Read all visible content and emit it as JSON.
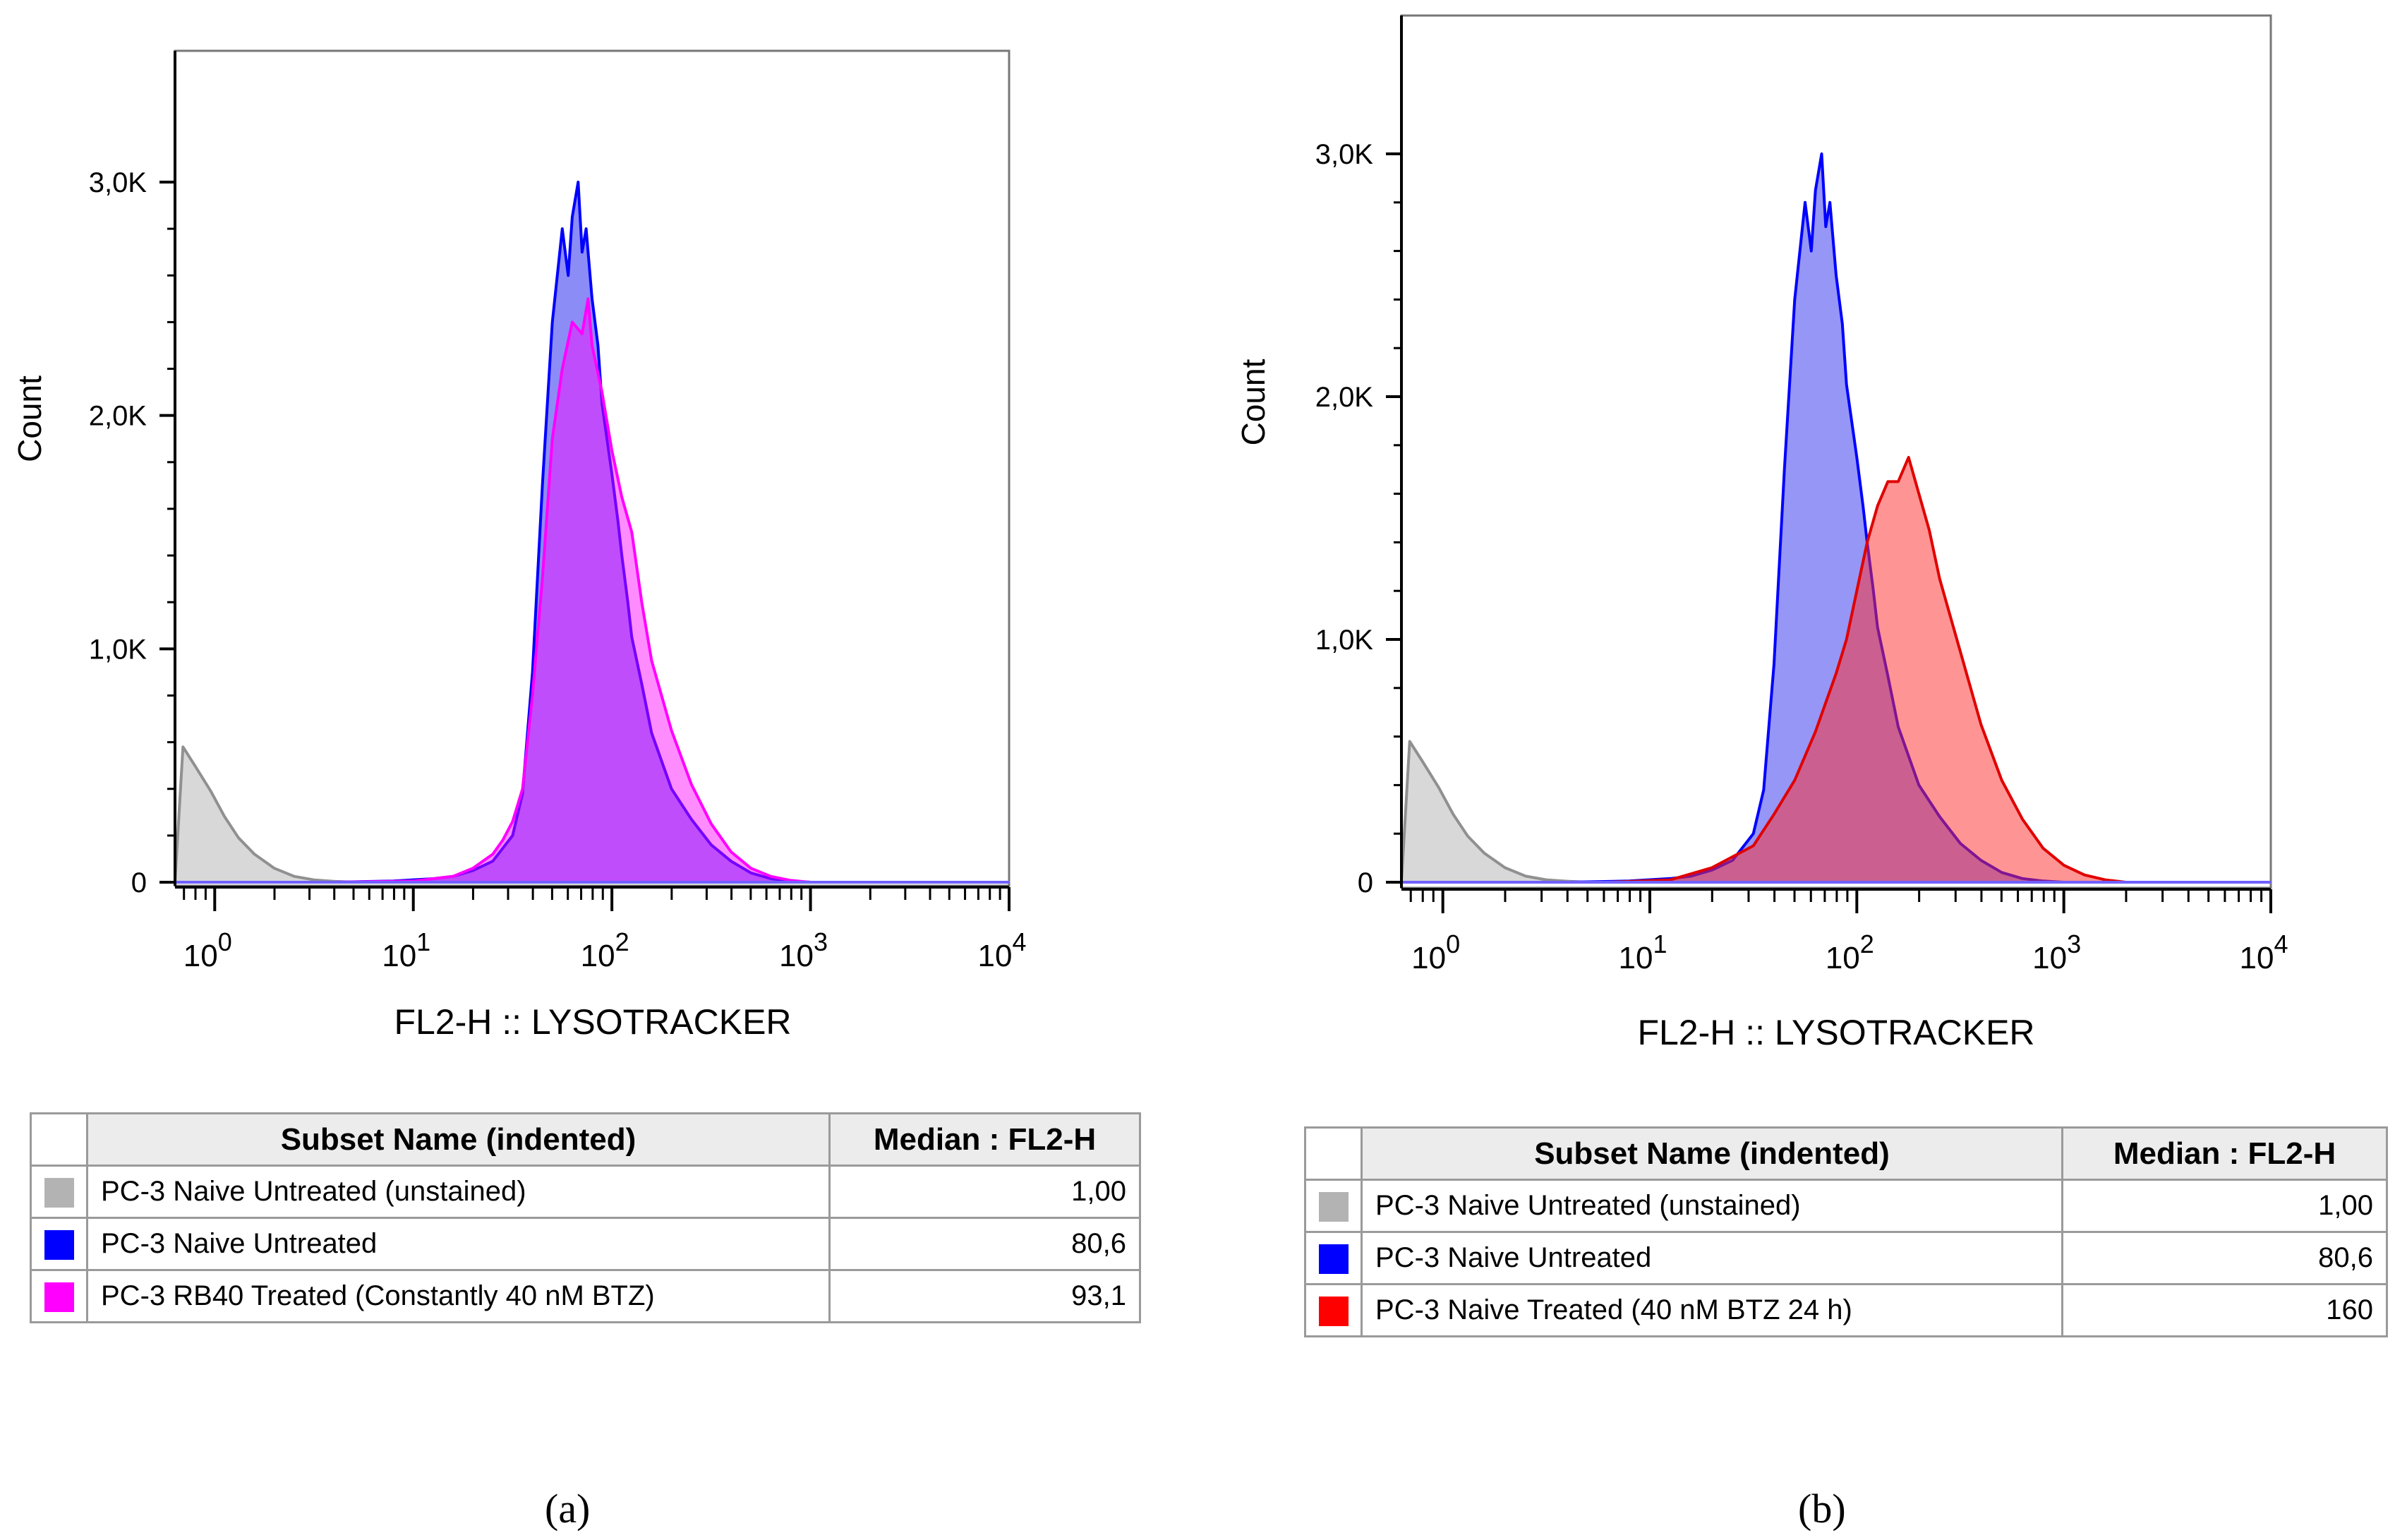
{
  "chart_data": [
    {
      "type": "histogram",
      "panel_label": "a",
      "ylabel": "Count",
      "xlabel": "FL2-H :: LYSOTRACKER",
      "x_scale": "log",
      "xlim_log10": [
        -0.2,
        4.0
      ],
      "ylim": [
        0,
        3600
      ],
      "y_ticks": [
        0,
        1000,
        2000,
        3000
      ],
      "y_tick_labels": [
        "0",
        "1,0K",
        "2,0K",
        "3,0K"
      ],
      "x_tick_base": "10",
      "x_tick_exponents": [
        "0",
        "1",
        "2",
        "3",
        "4"
      ],
      "series": [
        {
          "name": "PC-3 Naive Untreated (unstained)",
          "color": "#b8b8b8",
          "stroke": "#909090",
          "fill_opacity": 0.55,
          "median": "1,00",
          "points": [
            [
              -0.2,
              0
            ],
            [
              -0.16,
              580
            ],
            [
              -0.1,
              500
            ],
            [
              -0.02,
              390
            ],
            [
              0.05,
              280
            ],
            [
              0.12,
              190
            ],
            [
              0.2,
              120
            ],
            [
              0.3,
              60
            ],
            [
              0.4,
              25
            ],
            [
              0.5,
              10
            ],
            [
              0.6,
              4
            ],
            [
              0.7,
              0
            ]
          ]
        },
        {
          "name": "PC-3 Naive Untreated",
          "color": "#2d2df0",
          "stroke": "#0000ff",
          "fill_opacity": 0.55,
          "median": "80,6",
          "points": [
            [
              0.6,
              0
            ],
            [
              0.9,
              5
            ],
            [
              1.1,
              15
            ],
            [
              1.2,
              25
            ],
            [
              1.3,
              50
            ],
            [
              1.4,
              90
            ],
            [
              1.5,
              200
            ],
            [
              1.55,
              380
            ],
            [
              1.6,
              900
            ],
            [
              1.65,
              1700
            ],
            [
              1.7,
              2400
            ],
            [
              1.75,
              2800
            ],
            [
              1.78,
              2600
            ],
            [
              1.8,
              2850
            ],
            [
              1.83,
              3000
            ],
            [
              1.85,
              2700
            ],
            [
              1.87,
              2800
            ],
            [
              1.9,
              2500
            ],
            [
              1.93,
              2300
            ],
            [
              1.95,
              2050
            ],
            [
              2.0,
              1750
            ],
            [
              2.03,
              1550
            ],
            [
              2.05,
              1400
            ],
            [
              2.08,
              1200
            ],
            [
              2.1,
              1050
            ],
            [
              2.15,
              850
            ],
            [
              2.2,
              640
            ],
            [
              2.3,
              400
            ],
            [
              2.4,
              270
            ],
            [
              2.5,
              160
            ],
            [
              2.6,
              90
            ],
            [
              2.7,
              40
            ],
            [
              2.8,
              15
            ],
            [
              2.9,
              5
            ],
            [
              3.0,
              0
            ]
          ]
        },
        {
          "name": "PC-3 RB40 Treated (Constantly 40 nM BTZ)",
          "color": "#ff00ff",
          "stroke": "#ff00ff",
          "fill_opacity": 0.45,
          "median": "93,1",
          "points": [
            [
              0.6,
              0
            ],
            [
              1.0,
              5
            ],
            [
              1.2,
              25
            ],
            [
              1.3,
              60
            ],
            [
              1.4,
              120
            ],
            [
              1.45,
              180
            ],
            [
              1.5,
              260
            ],
            [
              1.55,
              400
            ],
            [
              1.6,
              800
            ],
            [
              1.65,
              1300
            ],
            [
              1.7,
              1900
            ],
            [
              1.75,
              2200
            ],
            [
              1.8,
              2400
            ],
            [
              1.85,
              2350
            ],
            [
              1.88,
              2500
            ],
            [
              1.9,
              2300
            ],
            [
              1.95,
              2100
            ],
            [
              2.0,
              1850
            ],
            [
              2.05,
              1650
            ],
            [
              2.1,
              1500
            ],
            [
              2.15,
              1200
            ],
            [
              2.2,
              950
            ],
            [
              2.3,
              650
            ],
            [
              2.4,
              420
            ],
            [
              2.5,
              250
            ],
            [
              2.6,
              130
            ],
            [
              2.7,
              60
            ],
            [
              2.8,
              25
            ],
            [
              2.9,
              8
            ],
            [
              3.0,
              0
            ]
          ]
        }
      ]
    },
    {
      "type": "histogram",
      "panel_label": "b",
      "ylabel": "Count",
      "xlabel": "FL2-H :: LYSOTRACKER",
      "x_scale": "log",
      "xlim_log10": [
        -0.2,
        4.0
      ],
      "ylim": [
        0,
        3600
      ],
      "y_ticks": [
        0,
        1000,
        2000,
        3000
      ],
      "y_tick_labels": [
        "0",
        "1,0K",
        "2,0K",
        "3,0K"
      ],
      "x_tick_base": "10",
      "x_tick_exponents": [
        "0",
        "1",
        "2",
        "3",
        "4"
      ],
      "series": [
        {
          "name": "PC-3 Naive Untreated (unstained)",
          "color": "#b8b8b8",
          "stroke": "#909090",
          "fill_opacity": 0.55,
          "median": "1,00",
          "points": [
            [
              -0.2,
              0
            ],
            [
              -0.16,
              580
            ],
            [
              -0.1,
              500
            ],
            [
              -0.02,
              390
            ],
            [
              0.05,
              280
            ],
            [
              0.12,
              190
            ],
            [
              0.2,
              120
            ],
            [
              0.3,
              60
            ],
            [
              0.4,
              25
            ],
            [
              0.5,
              10
            ],
            [
              0.6,
              4
            ],
            [
              0.7,
              0
            ]
          ]
        },
        {
          "name": "PC-3 Naive Untreated",
          "color": "#2d2df0",
          "stroke": "#0000ff",
          "fill_opacity": 0.5,
          "median": "80,6",
          "points": [
            [
              0.6,
              0
            ],
            [
              0.9,
              5
            ],
            [
              1.1,
              15
            ],
            [
              1.2,
              25
            ],
            [
              1.3,
              50
            ],
            [
              1.4,
              90
            ],
            [
              1.5,
              200
            ],
            [
              1.55,
              380
            ],
            [
              1.6,
              900
            ],
            [
              1.65,
              1700
            ],
            [
              1.7,
              2400
            ],
            [
              1.75,
              2800
            ],
            [
              1.78,
              2600
            ],
            [
              1.8,
              2850
            ],
            [
              1.83,
              3000
            ],
            [
              1.85,
              2700
            ],
            [
              1.87,
              2800
            ],
            [
              1.9,
              2500
            ],
            [
              1.93,
              2300
            ],
            [
              1.95,
              2050
            ],
            [
              2.0,
              1750
            ],
            [
              2.03,
              1550
            ],
            [
              2.05,
              1400
            ],
            [
              2.08,
              1200
            ],
            [
              2.1,
              1050
            ],
            [
              2.15,
              850
            ],
            [
              2.2,
              640
            ],
            [
              2.3,
              400
            ],
            [
              2.4,
              270
            ],
            [
              2.5,
              160
            ],
            [
              2.6,
              90
            ],
            [
              2.7,
              40
            ],
            [
              2.8,
              15
            ],
            [
              2.9,
              5
            ],
            [
              3.0,
              0
            ]
          ]
        },
        {
          "name": "PC-3 Naive Treated (40 nM BTZ 24 h)",
          "color": "#ff2a2a",
          "stroke": "#e00000",
          "fill_opacity": 0.5,
          "median": "160",
          "points": [
            [
              0.8,
              0
            ],
            [
              1.1,
              10
            ],
            [
              1.3,
              60
            ],
            [
              1.5,
              150
            ],
            [
              1.6,
              280
            ],
            [
              1.7,
              420
            ],
            [
              1.8,
              620
            ],
            [
              1.9,
              860
            ],
            [
              1.95,
              1000
            ],
            [
              2.0,
              1200
            ],
            [
              2.05,
              1400
            ],
            [
              2.1,
              1550
            ],
            [
              2.15,
              1650
            ],
            [
              2.2,
              1650
            ],
            [
              2.25,
              1750
            ],
            [
              2.3,
              1600
            ],
            [
              2.35,
              1450
            ],
            [
              2.4,
              1250
            ],
            [
              2.5,
              950
            ],
            [
              2.6,
              650
            ],
            [
              2.7,
              420
            ],
            [
              2.8,
              260
            ],
            [
              2.9,
              140
            ],
            [
              3.0,
              70
            ],
            [
              3.1,
              30
            ],
            [
              3.2,
              10
            ],
            [
              3.3,
              0
            ]
          ]
        }
      ]
    }
  ],
  "panels": [
    {
      "legend": {
        "header_name": "Subset Name (indented)",
        "header_value": "Median : FL2-H",
        "rows": [
          {
            "name": "PC-3 Naive Untreated (unstained)",
            "value": "1,00",
            "color": "#b3b3b3"
          },
          {
            "name": "PC-3 Naive Untreated",
            "value": "80,6",
            "color": "#0000ff"
          },
          {
            "name": "PC-3 RB40 Treated (Constantly 40 nM BTZ)",
            "value": "93,1",
            "color": "#ff00ff"
          }
        ]
      },
      "caption": "(a)"
    },
    {
      "legend": {
        "header_name": "Subset Name (indented)",
        "header_value": "Median : FL2-H",
        "rows": [
          {
            "name": "PC-3 Naive Untreated (unstained)",
            "value": "1,00",
            "color": "#b3b3b3"
          },
          {
            "name": "PC-3 Naive Untreated",
            "value": "80,6",
            "color": "#0000ff"
          },
          {
            "name": "PC-3 Naive Treated (40 nM BTZ 24 h)",
            "value": "160",
            "color": "#ff0000"
          }
        ]
      },
      "caption": "(b)"
    }
  ]
}
